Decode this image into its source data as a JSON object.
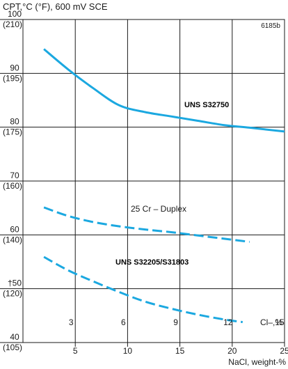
{
  "chart_data": {
    "type": "line",
    "title": "CPT,°C (°F), 600 mV SCE",
    "reference_code": "6185b",
    "y_axis": {
      "min": 40,
      "max": 100,
      "ticks": [
        {
          "value": 100,
          "label": "100",
          "sublabel": "(210)"
        },
        {
          "value": 90,
          "label": "90",
          "sublabel": "(195)"
        },
        {
          "value": 80,
          "label": "80",
          "sublabel": "(175)"
        },
        {
          "value": 70,
          "label": "70",
          "sublabel": "(160)"
        },
        {
          "value": 60,
          "label": "60",
          "sublabel": "(140)"
        },
        {
          "value": 50,
          "label": "†50",
          "sublabel": "(120)"
        },
        {
          "value": 40,
          "label": "40",
          "sublabel": "(105)"
        }
      ]
    },
    "x_axis": {
      "min": 0,
      "max": 15,
      "ticks_chloride": [
        3,
        6,
        9,
        12,
        15
      ],
      "label_chloride": "Cl–,%",
      "ticks_nacl": [
        {
          "value": 5,
          "label": "5"
        },
        {
          "value": 10,
          "label": "10"
        },
        {
          "value": 15,
          "label": "15"
        },
        {
          "value": 20,
          "label": "20"
        },
        {
          "value": 25,
          "label": "25"
        }
      ],
      "label_nacl": "NaCl, weight-%"
    },
    "grid": true,
    "series": [
      {
        "name": "UNS S32750",
        "style": "solid",
        "color": "#1ba8e0",
        "x": [
          1.2,
          2.6,
          4.0,
          5.5,
          7.0,
          8.5,
          10.0,
          11.5,
          13.0,
          15.0
        ],
        "y": [
          94.5,
          90.7,
          87.3,
          84.1,
          82.8,
          82.0,
          81.2,
          80.4,
          79.9,
          79.2
        ]
      },
      {
        "name": "25 Cr – Duplex",
        "style": "dashed",
        "color": "#1ba8e0",
        "x": [
          1.2,
          2.6,
          4.0,
          5.5,
          7.0,
          8.5,
          10.0,
          11.5,
          13.0
        ],
        "y": [
          65.1,
          63.5,
          62.4,
          61.6,
          61.0,
          60.5,
          59.9,
          59.3,
          58.7
        ]
      },
      {
        "name": "UNS S32205/S31803",
        "style": "dashed",
        "color": "#1ba8e0",
        "x": [
          1.2,
          2.6,
          4.0,
          5.5,
          7.0,
          8.5,
          10.0,
          11.5,
          12.6
        ],
        "y": [
          55.9,
          53.4,
          51.4,
          49.4,
          47.6,
          46.3,
          45.2,
          44.3,
          43.8
        ]
      }
    ]
  }
}
